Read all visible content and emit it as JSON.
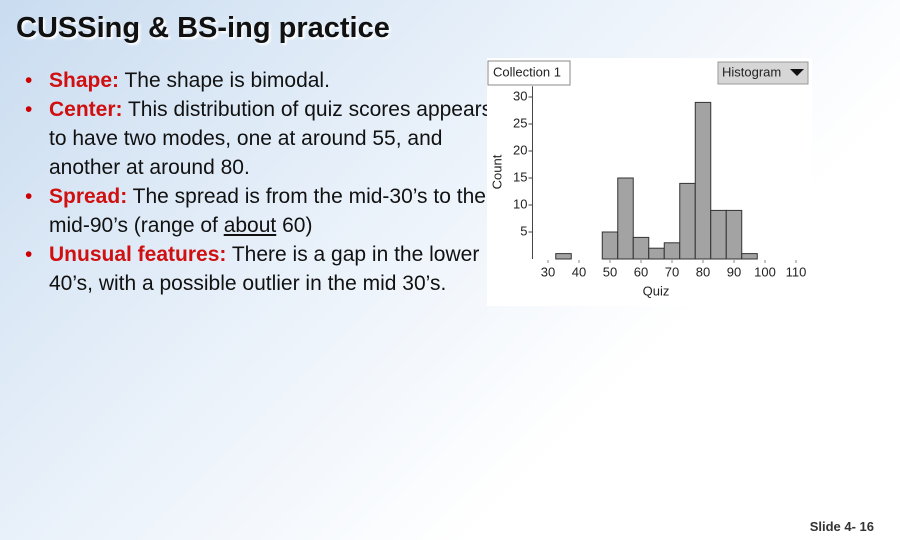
{
  "slide": {
    "title": "CUSSing & BS-ing practice",
    "bullets": [
      {
        "label": "Shape:",
        "text": "The shape is bimodal."
      },
      {
        "label": "Center:",
        "text": "This distribution of quiz scores appears to have two modes, one at around 55, and another at around 80."
      },
      {
        "label": "Spread:",
        "text": [
          "The spread is from the mid-30’s to the mid-90’s (range of ",
          "about",
          " 60)"
        ]
      },
      {
        "label": "Unusual features:",
        "text": "There is a gap in the lower 40’s, with a possible outlier in the mid 30’s."
      }
    ],
    "collection": "Collection 1",
    "menu": "Histogram",
    "footer": "Slide 4- 16"
  },
  "chart_data": {
    "type": "histogram",
    "xlabel": "Quiz",
    "ylabel": "Count",
    "bins": [
      32.5,
      37.5,
      42.5,
      47.5,
      52.5,
      57.5,
      62.5,
      67.5,
      72.5,
      77.5,
      82.5,
      87.5,
      92.5,
      97.5
    ],
    "values": [
      1,
      0,
      0,
      5,
      15,
      4,
      2,
      3,
      14,
      29,
      9,
      9,
      1
    ],
    "color": "#a3a3a3",
    "xlim": [
      25,
      115
    ],
    "xticks": [
      30,
      40,
      50,
      60,
      70,
      80,
      90,
      100,
      110
    ],
    "ylim": [
      0,
      32
    ],
    "yticks": [
      5,
      10,
      15,
      20,
      25,
      30
    ]
  }
}
